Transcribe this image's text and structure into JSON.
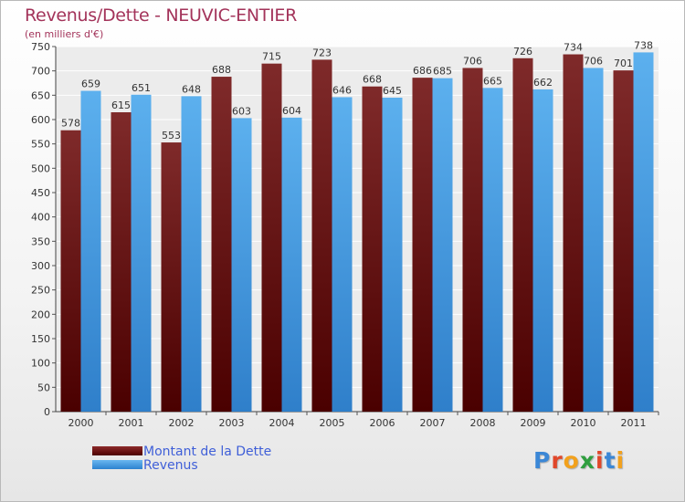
{
  "chart_data": {
    "type": "bar",
    "title": "Revenus/Dette - NEUVIC-ENTIER",
    "subtitle": "(en milliers d'€)",
    "categories": [
      "2000",
      "2001",
      "2002",
      "2003",
      "2004",
      "2005",
      "2006",
      "2007",
      "2008",
      "2009",
      "2010",
      "2011"
    ],
    "series": [
      {
        "name": "Montant de la Dette",
        "color": "#7a1818",
        "values": [
          578,
          615,
          553,
          688,
          715,
          723,
          668,
          686,
          706,
          726,
          734,
          701
        ]
      },
      {
        "name": "Revenus",
        "color": "#4f9fe0",
        "values": [
          659,
          651,
          648,
          603,
          604,
          646,
          645,
          685,
          665,
          662,
          706,
          738
        ]
      }
    ],
    "ylim": [
      0,
      750
    ],
    "yticks": [
      0,
      50,
      100,
      150,
      200,
      250,
      300,
      350,
      400,
      450,
      500,
      550,
      600,
      650,
      700,
      750
    ],
    "grid": true,
    "legend": "bottom-left"
  },
  "logo": {
    "letters": [
      "P",
      "r",
      "o",
      "x",
      "i",
      "t",
      "i"
    ],
    "colors": [
      "#3b87d6",
      "#e0472a",
      "#f2a11d",
      "#2f9e3f",
      "#e0472a",
      "#3b87d6",
      "#f2a11d"
    ]
  }
}
